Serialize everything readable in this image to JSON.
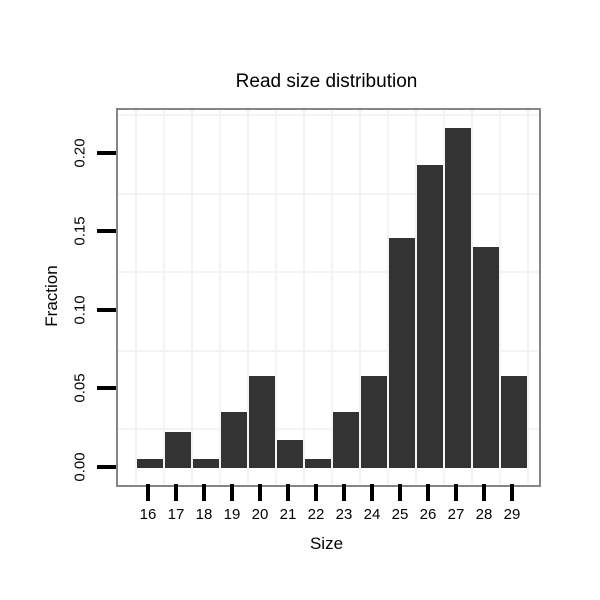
{
  "chart_data": {
    "type": "bar",
    "title": "Read size distribution",
    "xlabel": "Size",
    "ylabel": "Fraction",
    "categories": [
      "16",
      "17",
      "18",
      "19",
      "20",
      "21",
      "22",
      "23",
      "24",
      "25",
      "26",
      "27",
      "28",
      "29"
    ],
    "values": [
      0.006,
      0.023,
      0.006,
      0.036,
      0.059,
      0.018,
      0.006,
      0.036,
      0.059,
      0.147,
      0.193,
      0.217,
      0.141,
      0.059
    ],
    "yticks": [
      {
        "value": 0.0,
        "label": "0.00"
      },
      {
        "value": 0.05,
        "label": "0.05"
      },
      {
        "value": 0.1,
        "label": "0.10"
      },
      {
        "value": 0.15,
        "label": "0.15"
      },
      {
        "value": 0.2,
        "label": "0.20"
      }
    ],
    "ylim": [
      -0.011,
      0.228
    ],
    "grid": "minor-only",
    "minor_y_step": 0.05,
    "minor_y_start": 0.025,
    "legend": "none",
    "colors": {
      "bar": "#333333",
      "panel_border": "#858585",
      "gridline": "#f3f3f3",
      "tick": "#000000",
      "text": "#000000",
      "background": "#ffffff"
    }
  }
}
